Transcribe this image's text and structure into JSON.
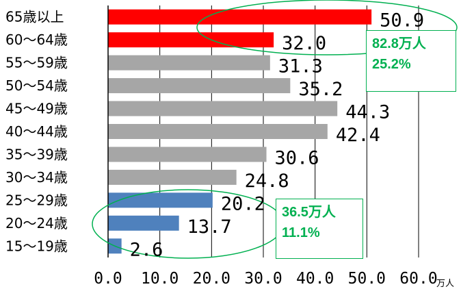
{
  "chart_data": {
    "type": "bar",
    "orientation": "horizontal",
    "unit": "万人",
    "categories": [
      "65歳以上",
      "60〜64歳",
      "55〜59歳",
      "50〜54歳",
      "45〜49歳",
      "40〜44歳",
      "35〜39歳",
      "30〜34歳",
      "25〜29歳",
      "20〜24歳",
      "15〜19歳"
    ],
    "values": [
      50.9,
      32.0,
      31.3,
      35.2,
      44.3,
      42.4,
      30.6,
      24.8,
      20.2,
      13.7,
      2.6
    ],
    "value_labels": [
      "50.9",
      "32.0",
      "31.3",
      "35.2",
      "44.3",
      "42.4",
      "30.6",
      "24.8",
      "20.2",
      "13.7",
      "2.6"
    ],
    "bar_colors": [
      "#ff0000",
      "#ff0000",
      "#a6a6a6",
      "#a6a6a6",
      "#a6a6a6",
      "#a6a6a6",
      "#a6a6a6",
      "#a6a6a6",
      "#4f81bd",
      "#4f81bd",
      "#4f81bd"
    ],
    "xlim": [
      0,
      60
    ],
    "ticks": [
      0,
      10,
      20,
      30,
      40,
      50,
      60
    ],
    "tick_labels": [
      "0.0",
      "10.0",
      "20.0",
      "30.0",
      "40.0",
      "50.0",
      "60.0"
    ],
    "grid": true,
    "annotations": [
      {
        "line1": "82.8万人",
        "line2": "25.2%",
        "color": "#00b050",
        "applies_to": [
          "65歳以上",
          "60〜64歳"
        ]
      },
      {
        "line1": "36.5万人",
        "line2": "11.1%",
        "color": "#00b050",
        "applies_to": [
          "25〜29歳",
          "20〜24歳",
          "15〜19歳"
        ]
      }
    ]
  }
}
